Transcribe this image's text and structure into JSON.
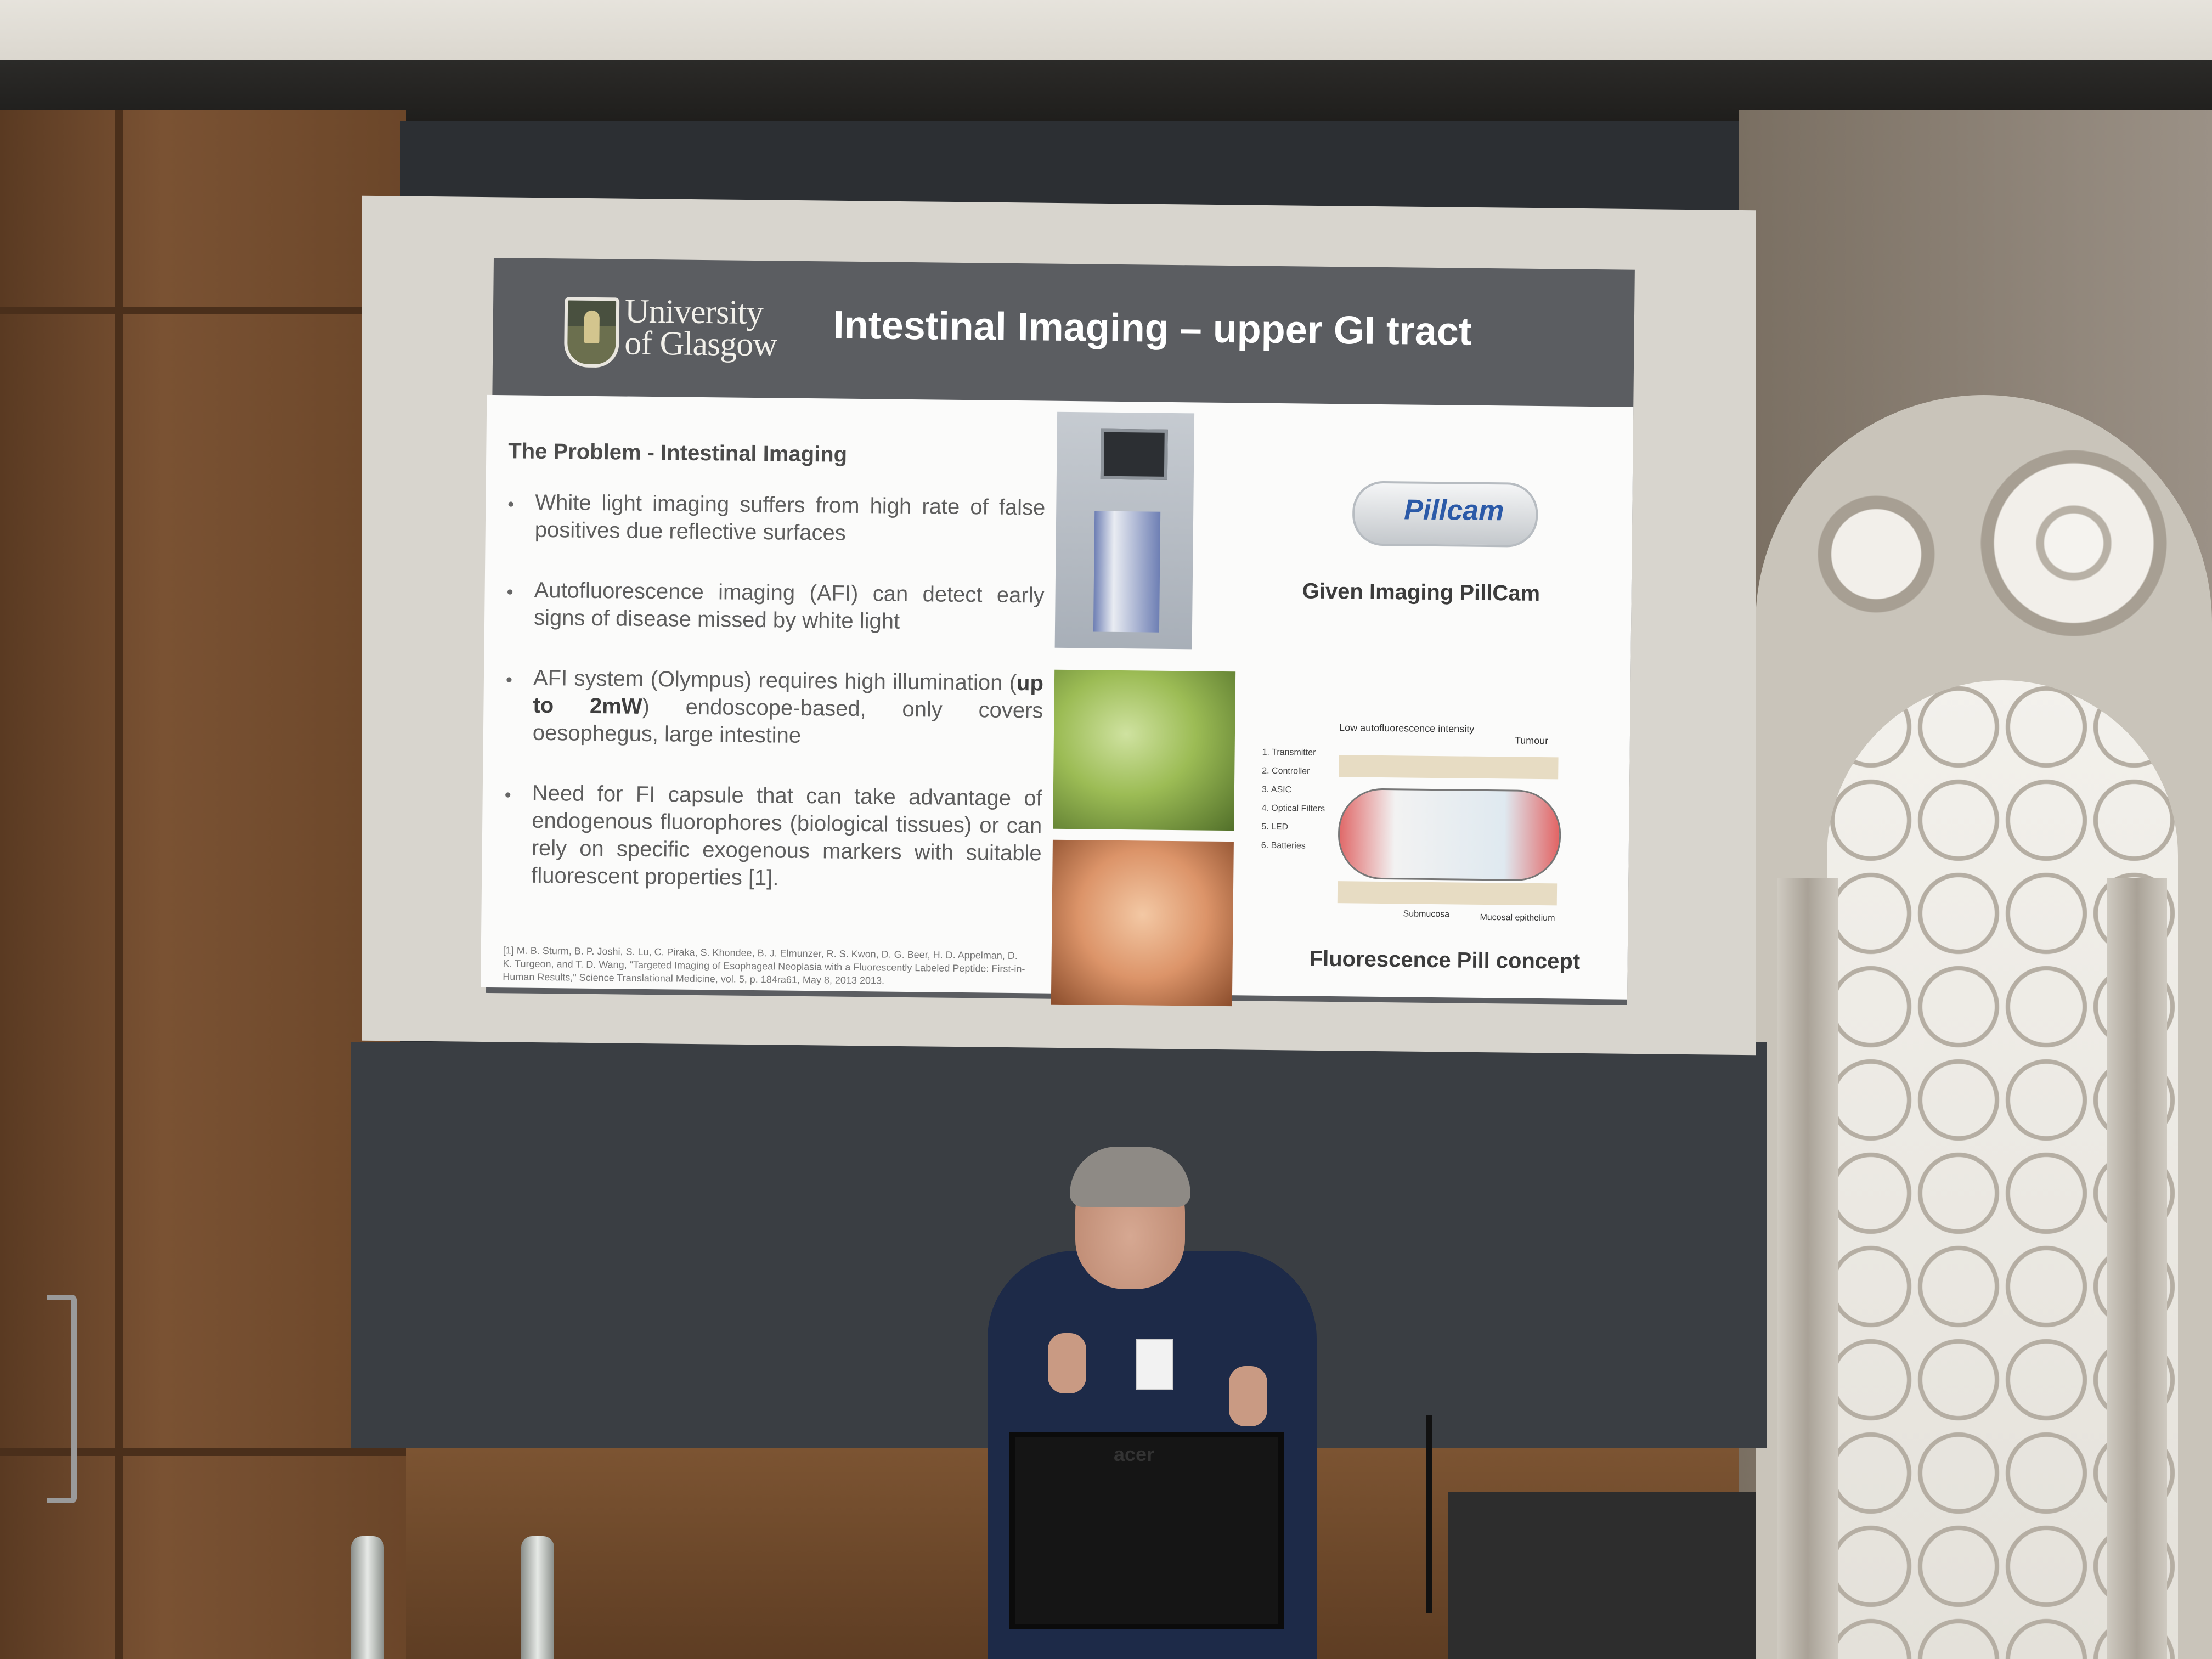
{
  "slide": {
    "logo_line1": "University",
    "logo_line2": "of Glasgow",
    "title": "Intestinal Imaging – upper GI tract",
    "problem_heading": "The Problem - Intestinal Imaging",
    "bullet_symbol": "•",
    "bullets": [
      {
        "text": "White light imaging suffers from high rate of false positives due reflective surfaces"
      },
      {
        "text": "Autofluorescence imaging (AFI) can detect early signs of disease missed by white light"
      },
      {
        "pre": "AFI system (Olympus) requires high illumination (",
        "bold": "up to 2mW",
        "post": ") endoscope-based, only covers oesophegus, large intestine"
      },
      {
        "text": "Need for FI capsule that can take advantage of endogenous fluorophores (biological tissues) or can rely on specific exogenous markers with suitable fluorescent properties [1]."
      }
    ],
    "reference": "[1] M. B. Sturm, B. P. Joshi, S. Lu, C. Piraka, S. Khondee, B. J. Elmunzer, R. S. Kwon, D. G. Beer, H. D. Appelman, D. K. Turgeon, and T. D. Wang, \"Targeted Imaging of Esophageal Neoplasia with a Fluorescently Labeled Peptide: First-in-Human Results,\" Science Translational Medicine, vol. 5, p. 184ra61, May 8, 2013 2013.",
    "pillcam_logo": "Pillcam",
    "pillcam_caption": "Given Imaging PillCam",
    "diagram": {
      "title": "Low autofluorescence intensity",
      "tumour": "Tumour",
      "parts": [
        "1. Transmitter",
        "2. Controller",
        "3. ASIC",
        "4. Optical Filters",
        "5. LED",
        "6. Batteries"
      ],
      "submucosa": "Submucosa",
      "epithelium": "Mucosal epithelium"
    },
    "fl_caption": "Fluorescence Pill concept"
  },
  "room": {
    "monitor_brand": "acer"
  }
}
